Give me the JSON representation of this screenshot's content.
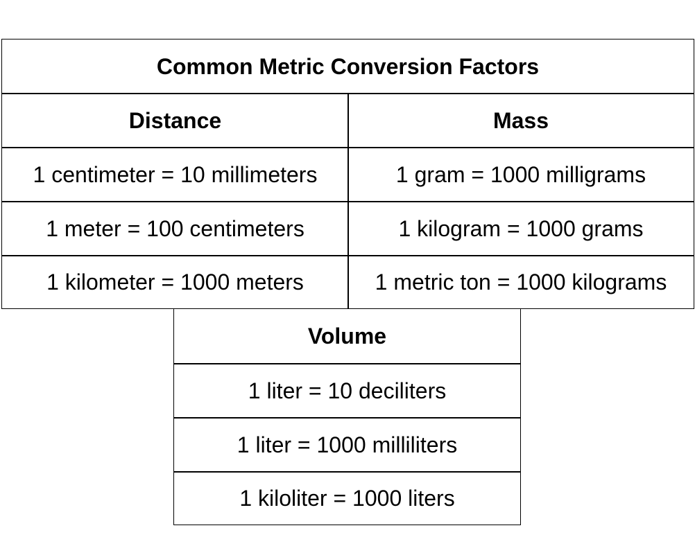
{
  "table": {
    "title": "Common Metric Conversion Factors",
    "distance": {
      "header": "Distance",
      "rows": [
        "1 centimeter = 10 millimeters",
        "1 meter = 100 centimeters",
        "1 kilometer = 1000 meters"
      ]
    },
    "mass": {
      "header": "Mass",
      "rows": [
        "1 gram = 1000 milligrams",
        "1 kilogram = 1000 grams",
        "1 metric ton = 1000 kilograms"
      ]
    },
    "volume": {
      "header": "Volume",
      "rows": [
        "1 liter = 10 deciliters",
        "1 liter = 1000 milliliters",
        "1 kiloliter = 1000 liters"
      ]
    }
  }
}
